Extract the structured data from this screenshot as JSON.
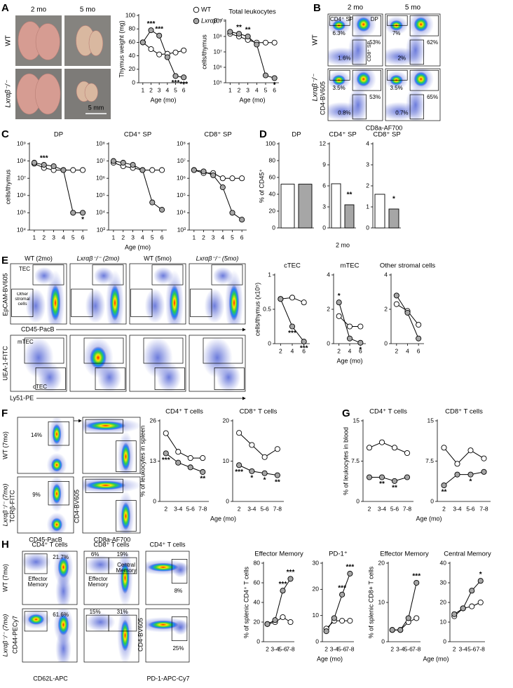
{
  "panel_letters": [
    "A",
    "B",
    "C",
    "D",
    "E",
    "F",
    "G",
    "H"
  ],
  "photos": {
    "columns": [
      "2 mo",
      "5 mo"
    ],
    "rows": [
      "WT",
      "Lxrαβ⁻/⁻"
    ],
    "scale_bar": "5 mm"
  },
  "flow_B": {
    "columns": [
      "2 mo",
      "5 mo"
    ],
    "rows": [
      "WT",
      "Lxrαβ⁻/⁻"
    ],
    "gates": [
      "CD4⁺ SP",
      "DP",
      "CD8⁺ SP"
    ],
    "percents": [
      [
        "6.3%",
        "53%",
        "1.6%"
      ],
      [
        "7%",
        "62%",
        "2%"
      ],
      [
        "3.5%",
        "53%",
        "0.8%"
      ],
      [
        "3.5%",
        "65%",
        "0.7%"
      ]
    ],
    "x_axis": "CD8a-AF700",
    "y_axis": "CD4-BV605"
  },
  "flow_E": {
    "columns": [
      "WT (2mo)",
      "Lxrαβ⁻/⁻ (2mo)",
      "WT (5mo)",
      "Lxrαβ⁻/⁻ (5mo)"
    ],
    "top_gates": [
      "TEC",
      "Other stromal cells"
    ],
    "top_x_axis": "CD45-PacB",
    "top_y_axis": "EpCAM-BV605",
    "bottom_gates": [
      "mTEC",
      "cTEC"
    ],
    "bottom_x_axis": "Ly51-PE",
    "bottom_y_axis": "UEA-1-FITC"
  },
  "flow_F": {
    "rows": [
      "WT (7mo)",
      "Lxrαβ⁻/⁻ (7mo)"
    ],
    "percents": [
      "14%",
      "9%"
    ],
    "x_axis_1": "CD45-PacB",
    "y_axis_1": "TCRβ-FITC",
    "x_axis_2": "CD8a-AF700",
    "y_axis_2": "CD4-BV605"
  },
  "flow_H": {
    "rows": [
      "WT (7mo)",
      "Lxrαβ⁻/⁻ (7mo)"
    ],
    "column_titles": [
      "CD4⁺ T cells",
      "CD8⁺ T cells",
      "CD4⁺ T cells"
    ],
    "gate_names": [
      "Effector Memory",
      "Effector Memory",
      "Central Memory"
    ],
    "percents": [
      [
        "21.7%",
        "6%",
        "19%",
        "8%"
      ],
      [
        "61.6%",
        "15%",
        "31%",
        "25%"
      ]
    ],
    "x_axis_1": "CD62L-APC",
    "y_axis_1": "CD44-PECy7",
    "x_axis_2": "PD-1-APC-Cy7",
    "y_axis_2": "CD4-BV605"
  },
  "chart_data": [
    {
      "type": "line",
      "ylabel": "Thymus weight (mg)",
      "xlabel": "Age (mo)",
      "x": [
        1,
        2,
        3,
        4,
        5,
        6
      ],
      "xlim": [
        0.5,
        6.5
      ],
      "xticks": [
        1,
        2,
        3,
        4,
        5,
        6
      ],
      "ylim": [
        0,
        100
      ],
      "yticks": [
        0,
        20,
        40,
        60,
        80,
        100
      ],
      "legend": "top-right",
      "series": [
        {
          "name": "WT",
          "color": "#ffffff",
          "values": [
            60,
            50,
            42,
            43,
            45,
            48
          ]
        },
        {
          "name": "Lxrαβ⁻/⁻",
          "color": "#a6a6a6",
          "values": [
            60,
            78,
            70,
            38,
            10,
            8
          ]
        }
      ],
      "annotations": [
        {
          "x": 2,
          "text": "***"
        },
        {
          "x": 3,
          "text": "***"
        },
        {
          "x": 5,
          "text": "***"
        },
        {
          "x": 6,
          "text": "***"
        }
      ]
    },
    {
      "type": "line",
      "title": "Total leukocytes",
      "ylabel": "cells/thymus",
      "xlabel": "Age (mo)",
      "log": true,
      "x": [
        1,
        2,
        3,
        4,
        5,
        6
      ],
      "xlim": [
        0.5,
        6.5
      ],
      "xticks": [
        1,
        2,
        3,
        4,
        5,
        6
      ],
      "ylim": [
        100000.0,
        1000000000.0
      ],
      "yticks": [
        {
          "value": 100000.0,
          "label": "10⁵"
        },
        {
          "value": 1000000.0,
          "label": "10⁶"
        },
        {
          "value": 10000000.0,
          "label": "10⁷"
        },
        {
          "value": 100000000.0,
          "label": "10⁸"
        },
        {
          "value": 1000000000.0,
          "label": "10⁹"
        }
      ],
      "series": [
        {
          "color": "#ffffff",
          "values": [
            150000000.0,
            100000000.0,
            60000000.0,
            40000000.0,
            40000000.0,
            40000000.0
          ]
        },
        {
          "color": "#a6a6a6",
          "values": [
            200000000.0,
            150000000.0,
            100000000.0,
            30000000.0,
            300000.0,
            200000.0
          ]
        }
      ],
      "annotations": [
        {
          "x": 2,
          "text": "**"
        },
        {
          "x": 3,
          "text": "**"
        },
        {
          "x": 6,
          "text": "*"
        }
      ]
    },
    {
      "type": "line",
      "title": "DP",
      "ylabel": "cells/thymus",
      "log": true,
      "x": [
        1,
        2,
        3,
        4,
        5,
        6
      ],
      "xlim": [
        0.5,
        6.5
      ],
      "xticks": [
        1,
        2,
        3,
        4,
        5,
        6
      ],
      "ylim": [
        10000.0,
        1000000000.0
      ],
      "yticks": [
        {
          "value": 10000.0,
          "label": "10⁴"
        },
        {
          "value": 100000.0,
          "label": "10⁵"
        },
        {
          "value": 1000000.0,
          "label": "10⁶"
        },
        {
          "value": 10000000.0,
          "label": "10⁷"
        },
        {
          "value": 100000000.0,
          "label": "10⁸"
        },
        {
          "value": 1000000000.0,
          "label": "10⁹"
        }
      ],
      "series": [
        {
          "color": "#ffffff",
          "values": [
            70000000.0,
            40000000.0,
            30000000.0,
            30000000.0,
            30000000.0,
            30000000.0
          ]
        },
        {
          "color": "#a6a6a6",
          "values": [
            80000000.0,
            60000000.0,
            50000000.0,
            30000000.0,
            100000.0,
            100000.0
          ]
        }
      ],
      "annotations": [
        {
          "x": 2,
          "text": "***"
        },
        {
          "x": 6,
          "text": "*"
        }
      ]
    },
    {
      "type": "line",
      "title": "CD4⁺ SP",
      "xlabel": "Age (mo)",
      "log": true,
      "x": [
        1,
        2,
        3,
        4,
        5,
        6
      ],
      "xlim": [
        0.5,
        6.5
      ],
      "xticks": [
        1,
        2,
        3,
        4,
        5,
        6
      ],
      "ylim": [
        1000.0,
        100000000.0
      ],
      "yticks": [
        {
          "value": 1000.0,
          "label": "10³"
        },
        {
          "value": 10000.0,
          "label": "10⁴"
        },
        {
          "value": 100000.0,
          "label": "10⁵"
        },
        {
          "value": 1000000.0,
          "label": "10⁶"
        },
        {
          "value": 10000000.0,
          "label": "10⁷"
        },
        {
          "value": 100000000.0,
          "label": "10⁸"
        }
      ],
      "series": [
        {
          "color": "#ffffff",
          "values": [
            8000000.0,
            5000000.0,
            4000000.0,
            3000000.0,
            3000000.0,
            3000000.0
          ]
        },
        {
          "color": "#a6a6a6",
          "values": [
            10000000.0,
            8000000.0,
            6000000.0,
            3000000.0,
            40000.0,
            15000.0
          ]
        }
      ]
    },
    {
      "type": "line",
      "title": "CD8⁺ SP",
      "log": true,
      "x": [
        1,
        2,
        3,
        4,
        5,
        6
      ],
      "xlim": [
        0.5,
        6.5
      ],
      "xticks": [
        1,
        2,
        3,
        4,
        5,
        6
      ],
      "ylim": [
        1000.0,
        100000000.0
      ],
      "yticks": [
        {
          "value": 1000.0,
          "label": "10³"
        },
        {
          "value": 10000.0,
          "label": "10⁴"
        },
        {
          "value": 100000.0,
          "label": "10⁵"
        },
        {
          "value": 1000000.0,
          "label": "10⁶"
        },
        {
          "value": 10000000.0,
          "label": "10⁷"
        },
        {
          "value": 100000000.0,
          "label": "10⁸"
        }
      ],
      "series": [
        {
          "color": "#ffffff",
          "values": [
            3000000.0,
            2000000.0,
            2000000.0,
            1000000.0,
            1000000.0,
            1000000.0
          ]
        },
        {
          "color": "#a6a6a6",
          "values": [
            3000000.0,
            2500000.0,
            1500000.0,
            300000.0,
            10000.0,
            4000.0
          ]
        }
      ]
    },
    {
      "type": "bar",
      "title": "DP",
      "ylabel": "% of CD45⁺",
      "categories": [
        null
      ],
      "ylim": [
        0,
        100
      ],
      "yticks": [
        0,
        20,
        40,
        60,
        80,
        100
      ],
      "series": [
        {
          "color": "#ffffff",
          "values": [
            52
          ]
        },
        {
          "color": "#a6a6a6",
          "values": [
            52
          ]
        }
      ]
    },
    {
      "type": "bar",
      "title": "CD4⁺ SP",
      "xlabel": "2 mo",
      "categories": [
        null
      ],
      "ylim": [
        0,
        12
      ],
      "yticks": [
        0,
        3,
        6,
        9,
        12
      ],
      "series": [
        {
          "color": "#ffffff",
          "values": [
            6.3
          ]
        },
        {
          "color": "#a6a6a6",
          "values": [
            3.3
          ]
        }
      ],
      "annotations": [
        {
          "text": "**"
        }
      ]
    },
    {
      "type": "bar",
      "title": "CD8⁺ SP",
      "categories": [
        null
      ],
      "ylim": [
        0,
        4
      ],
      "yticks": [
        0,
        1,
        2,
        3,
        4
      ],
      "series": [
        {
          "color": "#ffffff",
          "values": [
            1.6
          ]
        },
        {
          "color": "#a6a6a6",
          "values": [
            0.9
          ]
        }
      ],
      "annotations": [
        {
          "text": "*"
        }
      ]
    },
    {
      "type": "line",
      "title": "cTEC",
      "ylabel": "cells/thymus (x10⁵)",
      "x": [
        2,
        4,
        6
      ],
      "xlim": [
        1,
        7
      ],
      "xticks": [
        2,
        4,
        6
      ],
      "ylim": [
        0,
        1
      ],
      "yticks": [
        0,
        0.5,
        1
      ],
      "series": [
        {
          "color": "#ffffff",
          "values": [
            0.65,
            0.67,
            0.6
          ]
        },
        {
          "color": "#a6a6a6",
          "values": [
            0.65,
            0.25,
            0.03
          ]
        }
      ],
      "annotations": [
        {
          "x": 4,
          "text": "***"
        },
        {
          "x": 6,
          "text": "***"
        }
      ]
    },
    {
      "type": "line",
      "title": "mTEC",
      "xlabel": "Age (mo)",
      "x": [
        2,
        4,
        6
      ],
      "xlim": [
        1,
        7
      ],
      "xticks": [
        2,
        4,
        6
      ],
      "ylim": [
        0,
        4
      ],
      "yticks": [
        0,
        2,
        4
      ],
      "series": [
        {
          "color": "#ffffff",
          "values": [
            1.6,
            1.0,
            1.0
          ]
        },
        {
          "color": "#a6a6a6",
          "values": [
            2.4,
            0.3,
            0.05
          ]
        }
      ],
      "annotations": [
        {
          "x": 2,
          "text": "*"
        },
        {
          "x": 6,
          "text": "*"
        }
      ]
    },
    {
      "type": "line",
      "title": "Other stromal cells",
      "x": [
        2,
        4,
        6
      ],
      "xlim": [
        1,
        7
      ],
      "xticks": [
        2,
        4,
        6
      ],
      "ylim": [
        0,
        4
      ],
      "yticks": [
        0,
        2,
        4
      ],
      "series": [
        {
          "color": "#ffffff",
          "values": [
            2.3,
            1.9,
            1.1
          ]
        },
        {
          "color": "#a6a6a6",
          "values": [
            2.8,
            1.8,
            0.3
          ]
        }
      ]
    },
    {
      "type": "line",
      "title": "CD4⁺ T cells",
      "ylabel": "% of leukocytes in spleen",
      "categories": [
        "2",
        "3-4",
        "5-6",
        "7-8"
      ],
      "ylim": [
        0,
        26
      ],
      "yticks": [
        0,
        13,
        26
      ],
      "series": [
        {
          "color": "#ffffff",
          "values": [
            22,
            16,
            14,
            14
          ]
        },
        {
          "color": "#a6a6a6",
          "values": [
            15.5,
            12.5,
            11,
            9.5
          ]
        }
      ],
      "annotations": [
        {
          "x": "2",
          "text": "***"
        },
        {
          "x": "7-8",
          "text": "**"
        }
      ]
    },
    {
      "type": "line",
      "title": "CD8⁺ T cells",
      "xlabel": "Age (mo)",
      "categories": [
        "2",
        "3-4",
        "5-6",
        "7-8"
      ],
      "ylim": [
        0,
        20
      ],
      "yticks": [
        0,
        10,
        20
      ],
      "series": [
        {
          "color": "#ffffff",
          "values": [
            17,
            14,
            11,
            13
          ]
        },
        {
          "color": "#a6a6a6",
          "values": [
            9,
            7.5,
            7,
            6.5
          ]
        }
      ],
      "annotations": [
        {
          "x": "2",
          "text": "***"
        },
        {
          "x": "3-4",
          "text": "*"
        },
        {
          "x": "5-6",
          "text": "*"
        },
        {
          "x": "7-8",
          "text": "**"
        }
      ]
    },
    {
      "type": "line",
      "title": "CD4⁺ T cells",
      "ylabel": "% of leukocytes in blood",
      "categories": [
        "2",
        "3-4",
        "5-6",
        "7-8"
      ],
      "ylim": [
        0,
        15
      ],
      "yticks": [
        0,
        7.5,
        15
      ],
      "series": [
        {
          "color": "#ffffff",
          "values": [
            10,
            11,
            10,
            9
          ]
        },
        {
          "color": "#a6a6a6",
          "values": [
            4.5,
            4.5,
            3.8,
            4.5
          ]
        }
      ],
      "annotations": [
        {
          "x": "3-4",
          "text": "**"
        },
        {
          "x": "5-6",
          "text": "**"
        }
      ]
    },
    {
      "type": "line",
      "title": "CD8⁺ T cells",
      "xlabel": "Age (mo)",
      "categories": [
        "2",
        "3-4",
        "5-6",
        "7-8"
      ],
      "ylim": [
        0,
        15
      ],
      "yticks": [
        0,
        7.5,
        15
      ],
      "series": [
        {
          "color": "#ffffff",
          "values": [
            10,
            7,
            9.5,
            8
          ]
        },
        {
          "color": "#a6a6a6",
          "values": [
            3,
            5,
            5,
            5.5
          ]
        }
      ],
      "annotations": [
        {
          "x": "2",
          "text": "**"
        },
        {
          "x": "5-6",
          "text": "*"
        }
      ]
    },
    {
      "type": "line",
      "title": "Effector Memory",
      "ylabel": "% of splenic CD4⁺ T cells",
      "categories": [
        "2",
        "3-4",
        "5-6",
        "7-8"
      ],
      "ylim": [
        0,
        80
      ],
      "yticks": [
        0,
        20,
        40,
        60,
        80
      ],
      "series": [
        {
          "color": "#ffffff",
          "values": [
            18,
            20,
            25,
            20
          ]
        },
        {
          "color": "#a6a6a6",
          "values": [
            18,
            22,
            52,
            64
          ]
        }
      ],
      "annotations": [
        {
          "x": "5-6",
          "text": "***"
        },
        {
          "x": "7-8",
          "text": "***"
        }
      ]
    },
    {
      "type": "line",
      "title": "PD-1⁺",
      "xlabel": "Age (mo)",
      "categories": [
        "2",
        "3-4",
        "5-6",
        "7-8"
      ],
      "ylim": [
        0,
        30
      ],
      "yticks": [
        0,
        10,
        20,
        30
      ],
      "series": [
        {
          "color": "#ffffff",
          "values": [
            5,
            8,
            8,
            8
          ]
        },
        {
          "color": "#a6a6a6",
          "values": [
            4,
            9,
            18,
            26
          ]
        }
      ],
      "annotations": [
        {
          "x": "5-6",
          "text": "***"
        },
        {
          "x": "7-8",
          "text": "***"
        }
      ]
    },
    {
      "type": "line",
      "title": "Effector Memory",
      "ylabel": "% of splenic CD8+ T cells",
      "categories": [
        "2",
        "3-4",
        "5-6",
        "7-8"
      ],
      "ylim": [
        0,
        20
      ],
      "yticks": [
        0,
        10,
        20
      ],
      "series": [
        {
          "color": "#ffffff",
          "values": [
            3,
            3,
            5,
            6
          ]
        },
        {
          "color": "#a6a6a6",
          "values": [
            3,
            3,
            6,
            15
          ]
        }
      ],
      "annotations": [
        {
          "x": "7-8",
          "text": "***"
        }
      ]
    },
    {
      "type": "line",
      "title": "Central Memory",
      "xlabel": "Age (mo)",
      "categories": [
        "2",
        "3-4",
        "5-6",
        "7-8"
      ],
      "ylim": [
        0,
        40
      ],
      "yticks": [
        0,
        10,
        20,
        30,
        40
      ],
      "series": [
        {
          "color": "#ffffff",
          "values": [
            13,
            17,
            18,
            20
          ]
        },
        {
          "color": "#a6a6a6",
          "values": [
            14,
            17,
            26,
            31
          ]
        }
      ],
      "annotations": [
        {
          "x": "7-8",
          "text": "*"
        }
      ]
    }
  ]
}
